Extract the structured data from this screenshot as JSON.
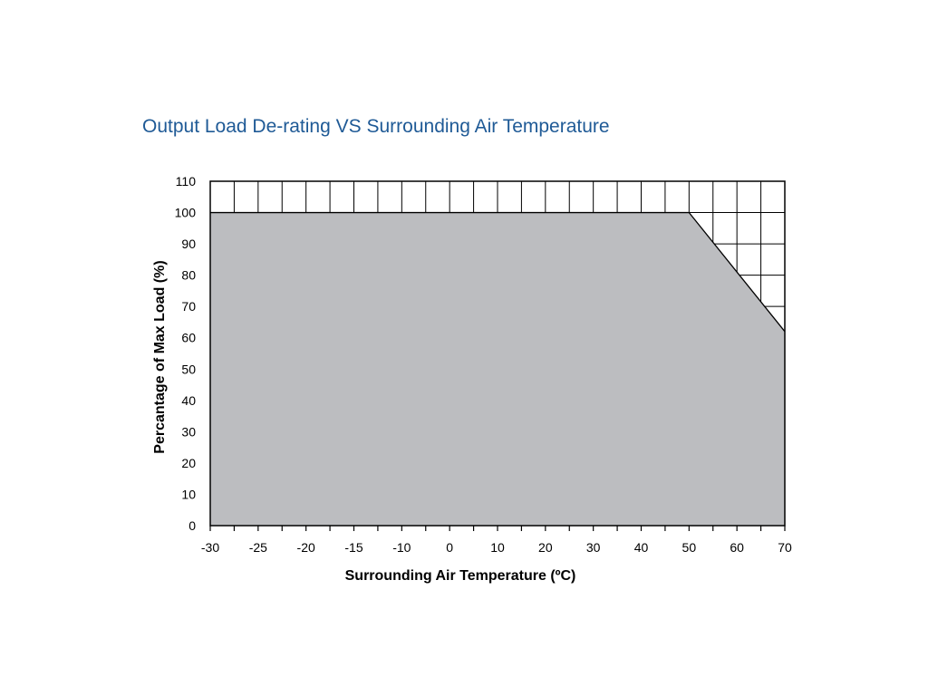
{
  "chart_data": {
    "type": "area",
    "title": "Output Load De-rating VS Surrounding Air Temperature",
    "xlabel": "Surrounding Air Temperature (ºC)",
    "ylabel": "Percantage of Max Load (%)",
    "xlim": [
      -30,
      70
    ],
    "ylim": [
      0,
      110
    ],
    "x_ticks": [
      -30,
      -25,
      -20,
      -15,
      -10,
      0,
      10,
      20,
      30,
      40,
      50,
      60,
      70
    ],
    "x_tick_labels": [
      "-30",
      "-25",
      "-20",
      "-15",
      "-10",
      "0",
      "10",
      "20",
      "30",
      "40",
      "50",
      "60",
      "70"
    ],
    "y_ticks": [
      0,
      10,
      20,
      30,
      40,
      50,
      60,
      70,
      80,
      90,
      100,
      110
    ],
    "y_tick_labels": [
      "0",
      "10",
      "20",
      "30",
      "40",
      "50",
      "60",
      "70",
      "80",
      "90",
      "100",
      "110"
    ],
    "series": [
      {
        "name": "Max Load",
        "x": [
          -30,
          50,
          70
        ],
        "y": [
          100,
          100,
          62
        ]
      }
    ],
    "grid": true,
    "fill_color": "#bcbdc0",
    "title_color": "#1f5a96"
  }
}
